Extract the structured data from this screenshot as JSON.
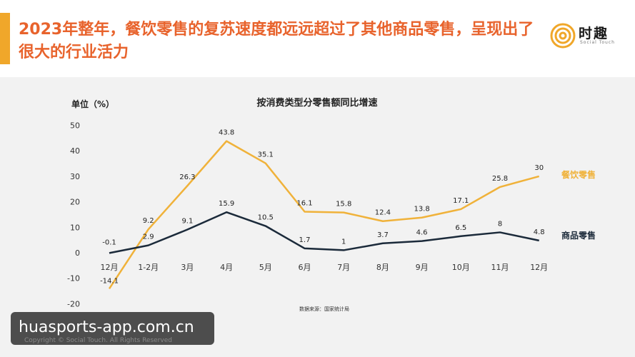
{
  "header": {
    "title": "2023年整年，餐饮零售的复苏速度都远远超过了其他商品零售，呈现出了很大的行业活力",
    "logo_text": "时趣",
    "logo_sub": "Social Touch"
  },
  "chart_data": {
    "type": "line",
    "title": "按消费类型分零售额同比增速",
    "ylabel": "单位（%）",
    "source": "数据来源：国家统计局",
    "categories": [
      "12月",
      "1-2月",
      "3月",
      "4月",
      "5月",
      "6月",
      "7月",
      "8月",
      "9月",
      "10月",
      "11月",
      "12月"
    ],
    "yticks": [
      "50",
      "40",
      "30",
      "20",
      "10",
      "0",
      "-10",
      "-20"
    ],
    "ylim": [
      -20,
      50
    ],
    "grid": false,
    "series": [
      {
        "name": "餐饮零售",
        "color": "#f0b23a",
        "values": [
          -14.1,
          9.2,
          26.3,
          43.8,
          35.1,
          16.1,
          15.8,
          12.4,
          13.8,
          17.1,
          25.8,
          30
        ],
        "labels": [
          "-14.1",
          "9.2",
          "26.3",
          "43.8",
          "35.1",
          "16.1",
          "15.8",
          "12.4",
          "13.8",
          "17.1",
          "25.8",
          "30"
        ]
      },
      {
        "name": "商品零售",
        "color": "#1b2a3a",
        "values": [
          -0.1,
          2.9,
          9.1,
          15.9,
          10.5,
          1.7,
          1,
          3.7,
          4.6,
          6.5,
          8,
          4.8
        ],
        "labels": [
          "-0.1",
          "2.9",
          "9.1",
          "15.9",
          "10.5",
          "1.7",
          "1",
          "3.7",
          "4.6",
          "6.5",
          "8",
          "4.8"
        ]
      }
    ]
  },
  "footer": {
    "watermark": "huasports-app.com.cn",
    "copyright": "Copyright © Social Touch. All Rights Reserved"
  }
}
